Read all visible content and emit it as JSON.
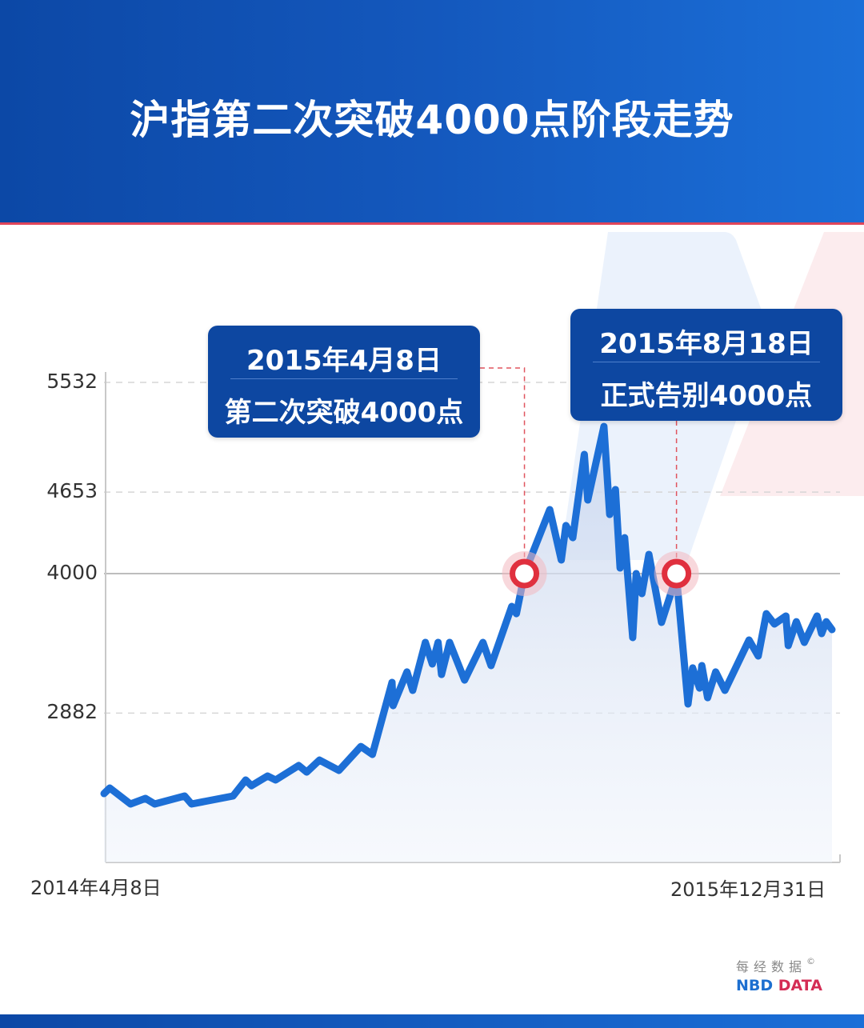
{
  "header": {
    "title": "沪指第二次突破4000点阶段走势"
  },
  "annotations": [
    {
      "date_label": "2015年4月8日",
      "text": "第二次突破4000点",
      "date": "2015-04-08",
      "value": 4000
    },
    {
      "date_label": "2015年8月18日",
      "text": "正式告别4000点",
      "date": "2015-08-18",
      "value": 4000
    }
  ],
  "logo": {
    "cn": "每经数据",
    "en_part1": "NBD",
    "en_part2": "DATA",
    "copyright": "©"
  },
  "colors": {
    "header": "#1458bd",
    "line": "#1d6fd6",
    "marker": "#e0303e",
    "annotation_box": "#0d47a1",
    "logo_nbd": "#1d6fd0",
    "logo_data": "#d42d55"
  },
  "chart_data": {
    "type": "area",
    "title": "沪指第二次突破4000点阶段走势",
    "xlabel": "",
    "ylabel": "",
    "x_tick_labels": [
      "2014年4月8日",
      "2015年12月31日"
    ],
    "xlim": [
      "2014-04-08",
      "2015-12-31"
    ],
    "y_ticks": [
      2882,
      4000,
      4653,
      5532
    ],
    "ylim": [
      1686,
      5532
    ],
    "grid": "horizontal dashed at y ticks, solid at 4000",
    "series": [
      {
        "points": [
          [
            "2014-04-08",
            2237
          ],
          [
            "2014-04-13",
            2282
          ],
          [
            "2014-05-01",
            2154
          ],
          [
            "2014-05-14",
            2199
          ],
          [
            "2014-05-22",
            2154
          ],
          [
            "2014-06-17",
            2218
          ],
          [
            "2014-06-23",
            2154
          ],
          [
            "2014-07-29",
            2218
          ],
          [
            "2014-08-09",
            2346
          ],
          [
            "2014-08-14",
            2301
          ],
          [
            "2014-08-28",
            2378
          ],
          [
            "2014-09-04",
            2346
          ],
          [
            "2014-09-24",
            2462
          ],
          [
            "2014-10-01",
            2410
          ],
          [
            "2014-10-12",
            2506
          ],
          [
            "2014-10-29",
            2423
          ],
          [
            "2014-11-17",
            2615
          ],
          [
            "2014-11-27",
            2551
          ],
          [
            "2014-12-14",
            3128
          ],
          [
            "2014-12-15",
            2942
          ],
          [
            "2014-12-27",
            3212
          ],
          [
            "2015-01-01",
            3064
          ],
          [
            "2015-01-12",
            3449
          ],
          [
            "2015-01-18",
            3276
          ],
          [
            "2015-01-23",
            3449
          ],
          [
            "2015-01-26",
            3192
          ],
          [
            "2015-02-02",
            3449
          ],
          [
            "2015-02-15",
            3147
          ],
          [
            "2015-03-03",
            3449
          ],
          [
            "2015-03-10",
            3263
          ],
          [
            "2015-03-28",
            3737
          ],
          [
            "2015-04-01",
            3679
          ],
          [
            "2015-04-08",
            4000
          ],
          [
            "2015-04-30",
            4513
          ],
          [
            "2015-05-10",
            4109
          ],
          [
            "2015-05-14",
            4385
          ],
          [
            "2015-05-20",
            4288
          ],
          [
            "2015-05-30",
            4955
          ],
          [
            "2015-06-02",
            4590
          ],
          [
            "2015-06-16",
            5179
          ],
          [
            "2015-06-21",
            4474
          ],
          [
            "2015-06-26",
            4673
          ],
          [
            "2015-06-30",
            4045
          ],
          [
            "2015-07-04",
            4288
          ],
          [
            "2015-07-11",
            3487
          ],
          [
            "2015-07-14",
            4000
          ],
          [
            "2015-07-19",
            3840
          ],
          [
            "2015-07-25",
            4154
          ],
          [
            "2015-08-05",
            3609
          ],
          [
            "2015-08-18",
            3981
          ],
          [
            "2015-08-28",
            2955
          ],
          [
            "2015-09-01",
            3244
          ],
          [
            "2015-09-07",
            3083
          ],
          [
            "2015-09-09",
            3263
          ],
          [
            "2015-09-14",
            3006
          ],
          [
            "2015-09-21",
            3212
          ],
          [
            "2015-09-29",
            3064
          ],
          [
            "2015-10-20",
            3468
          ],
          [
            "2015-10-28",
            3340
          ],
          [
            "2015-11-04",
            3679
          ],
          [
            "2015-11-11",
            3596
          ],
          [
            "2015-11-21",
            3660
          ],
          [
            "2015-11-23",
            3423
          ],
          [
            "2015-11-30",
            3615
          ],
          [
            "2015-12-07",
            3449
          ],
          [
            "2015-12-18",
            3660
          ],
          [
            "2015-12-22",
            3519
          ],
          [
            "2015-12-26",
            3615
          ],
          [
            "2015-12-31",
            3551
          ]
        ]
      }
    ]
  }
}
